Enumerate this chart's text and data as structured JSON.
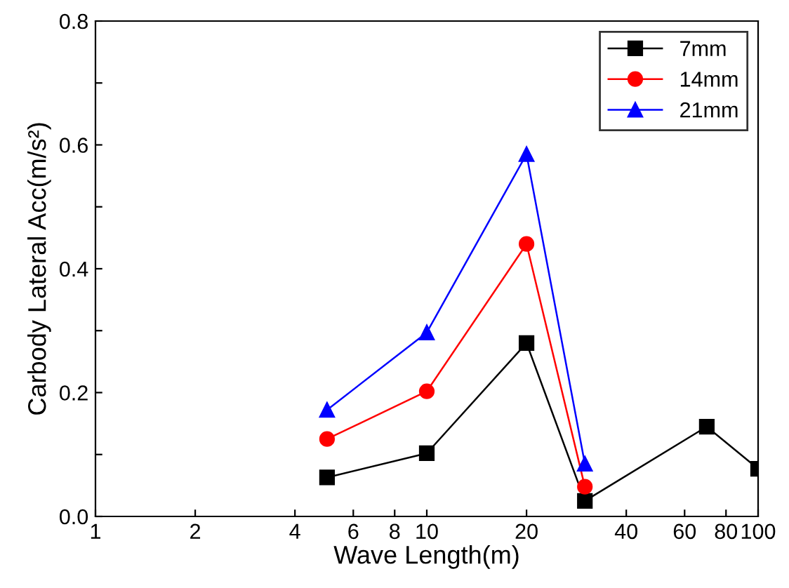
{
  "chart_data": {
    "type": "line",
    "xlabel": "Wave Length(m)",
    "ylabel": "Carbody Lateral Acc(m/s²)",
    "log": "x",
    "xlim": [
      1,
      100
    ],
    "xticks": [
      1,
      2,
      4,
      6,
      8,
      10,
      20,
      40,
      60,
      80,
      100
    ],
    "ylim": [
      0,
      0.8
    ],
    "yticks": [
      {
        "value": 0,
        "label": "0.0"
      },
      {
        "value": 0.1,
        "label": null
      },
      0.2,
      {
        "value": 0.3,
        "label": null
      },
      0.4,
      {
        "value": 0.5,
        "label": null
      },
      0.6,
      {
        "value": 0.7,
        "label": null
      },
      0.8
    ],
    "legend": "top right",
    "grid": false,
    "line_style": "solid",
    "series": [
      {
        "name": "7mm",
        "color": "#000000",
        "marker": "square",
        "x": [
          5,
          10,
          20,
          30,
          70,
          100
        ],
        "values": [
          0.063,
          0.102,
          0.28,
          0.025,
          0.145,
          0.077
        ]
      },
      {
        "name": "14mm",
        "color": "#ff0000",
        "marker": "circle",
        "x": [
          5,
          10,
          20,
          30
        ],
        "values": [
          0.125,
          0.202,
          0.44,
          0.048
        ]
      },
      {
        "name": "21mm",
        "color": "#0000ff",
        "marker": "triangle",
        "x": [
          5,
          10,
          20,
          30
        ],
        "values": [
          0.172,
          0.297,
          0.585,
          0.085
        ]
      }
    ]
  }
}
